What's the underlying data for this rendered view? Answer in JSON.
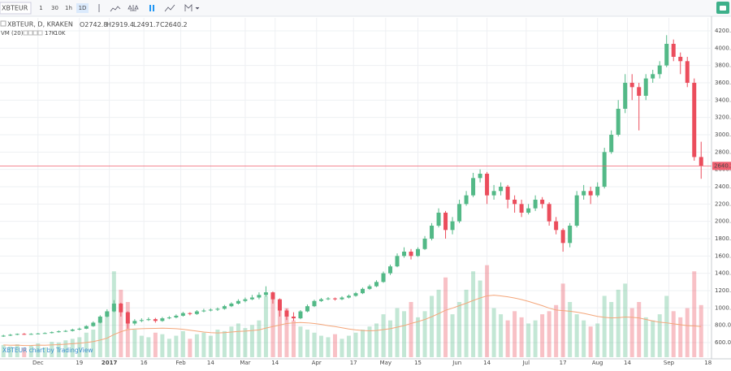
{
  "toolbar": {
    "symbol": "XBTEUR",
    "intervals": [
      "1",
      "30",
      "1h",
      "1D"
    ],
    "active": 3
  },
  "chart_data": {
    "type": "candlestick",
    "symbol_label": "XBTEUR, D, KRAKEN",
    "ohlc_labels": [
      "O",
      "H",
      "L",
      "C"
    ],
    "watermark": "XBTEUR chart by TradingView",
    "up_color": "#53b987",
    "down_color": "#eb4d5c",
    "last_price_color": "#f06070",
    "grid": true,
    "candles": {
      "open": [
        670,
        680,
        690,
        700,
        695,
        700,
        705,
        710,
        720,
        730,
        735,
        750,
        760,
        790,
        830,
        900,
        960,
        1050,
        950,
        820,
        850,
        860,
        870,
        850,
        880,
        890,
        910,
        940,
        930,
        960,
        970,
        980,
        990,
        1020,
        1050,
        1080,
        1100,
        1120,
        1150,
        1180,
        1100,
        970,
        900,
        880,
        960,
        1020,
        1080,
        1100,
        1110,
        1100,
        1120,
        1140,
        1170,
        1220,
        1250,
        1300,
        1400,
        1480,
        1600,
        1650,
        1600,
        1680,
        1800,
        1950,
        2100,
        1900,
        2000,
        2200,
        2300,
        2500,
        2550,
        2300,
        2350,
        2400,
        2250,
        2200,
        2100,
        2150,
        2250,
        2200,
        2000,
        1900,
        1750,
        1950,
        2300,
        2350,
        2300,
        2400,
        2800,
        3000,
        3300,
        3600,
        3550,
        3450,
        3650,
        3700,
        3800,
        4050,
        3900,
        3850,
        3600,
        2742.8
      ],
      "high": [
        690,
        700,
        705,
        710,
        708,
        712,
        718,
        728,
        740,
        745,
        760,
        772,
        800,
        845,
        915,
        985,
        1090,
        1060,
        960,
        870,
        880,
        890,
        885,
        895,
        905,
        925,
        955,
        950,
        975,
        990,
        995,
        1005,
        1035,
        1065,
        1100,
        1120,
        1150,
        1180,
        1250,
        1190,
        1110,
        990,
        950,
        975,
        1040,
        1095,
        1115,
        1125,
        1120,
        1135,
        1155,
        1185,
        1235,
        1270,
        1320,
        1420,
        1500,
        1630,
        1700,
        1680,
        1700,
        1830,
        1980,
        2150,
        2120,
        2050,
        2250,
        2350,
        2560,
        2600,
        2570,
        2420,
        2450,
        2420,
        2300,
        2250,
        2200,
        2300,
        2280,
        2220,
        2050,
        1920,
        1980,
        2350,
        2420,
        2400,
        2450,
        2850,
        3050,
        3400,
        3700,
        3700,
        3600,
        3700,
        3750,
        3850,
        4150,
        4100,
        3950,
        3900,
        3650,
        2919.4
      ],
      "low": [
        665,
        675,
        685,
        688,
        690,
        695,
        700,
        705,
        715,
        722,
        728,
        742,
        755,
        782,
        822,
        890,
        950,
        900,
        760,
        800,
        835,
        850,
        830,
        840,
        870,
        880,
        900,
        915,
        920,
        950,
        960,
        965,
        980,
        1010,
        1040,
        1065,
        1090,
        1100,
        1130,
        1050,
        900,
        860,
        850,
        870,
        950,
        1010,
        1070,
        1090,
        1085,
        1090,
        1110,
        1130,
        1160,
        1210,
        1240,
        1290,
        1380,
        1470,
        1580,
        1560,
        1590,
        1670,
        1780,
        1930,
        1800,
        1850,
        1980,
        2180,
        2280,
        2450,
        2200,
        2250,
        2300,
        2150,
        2100,
        2050,
        2080,
        2120,
        2150,
        1950,
        1850,
        1650,
        1700,
        1930,
        2250,
        2200,
        2280,
        2380,
        2780,
        2980,
        3250,
        3400,
        3050,
        3400,
        3600,
        3650,
        3780,
        3850,
        3700,
        3550,
        2700,
        2491.7
      ],
      "close": [
        680,
        690,
        700,
        695,
        700,
        705,
        710,
        720,
        730,
        735,
        750,
        760,
        790,
        830,
        900,
        960,
        1050,
        950,
        820,
        850,
        860,
        870,
        850,
        880,
        890,
        910,
        940,
        930,
        960,
        970,
        980,
        990,
        1020,
        1050,
        1080,
        1100,
        1120,
        1150,
        1180,
        1100,
        970,
        900,
        880,
        960,
        1020,
        1080,
        1100,
        1110,
        1100,
        1120,
        1140,
        1170,
        1220,
        1250,
        1300,
        1400,
        1480,
        1600,
        1650,
        1600,
        1680,
        1800,
        1950,
        2100,
        1900,
        2000,
        2200,
        2300,
        2500,
        2550,
        2300,
        2350,
        2400,
        2250,
        2200,
        2100,
        2150,
        2250,
        2200,
        2000,
        1900,
        1750,
        1950,
        2300,
        2350,
        2300,
        2400,
        2800,
        3000,
        3300,
        3600,
        3550,
        3450,
        3650,
        3700,
        3800,
        4050,
        3900,
        3850,
        3600,
        2742.8,
        2640.2
      ]
    },
    "volume": {
      "name": "VM (20)",
      "values": [
        4000,
        3500,
        4200,
        3000,
        3800,
        4500,
        3200,
        5000,
        4800,
        5500,
        6000,
        6500,
        8000,
        9000,
        12000,
        15000,
        28000,
        22000,
        18000,
        9000,
        7000,
        6500,
        8000,
        7500,
        6000,
        7000,
        8500,
        6000,
        7500,
        8000,
        7000,
        9000,
        8500,
        10000,
        11000,
        9500,
        10500,
        12000,
        20000,
        19000,
        18000,
        16000,
        12000,
        10000,
        9000,
        8000,
        7000,
        6500,
        7500,
        6000,
        7000,
        8000,
        9000,
        10000,
        11000,
        14000,
        12000,
        16000,
        15000,
        18000,
        13000,
        15000,
        20000,
        22000,
        26000,
        14000,
        18000,
        22000,
        28000,
        25000,
        30000,
        16000,
        14000,
        12000,
        15000,
        13000,
        11000,
        12000,
        14000,
        15000,
        17000,
        24000,
        18000,
        14000,
        12000,
        10000,
        11000,
        20000,
        18000,
        22000,
        24000,
        16000,
        18000,
        13000,
        12000,
        14000,
        20000,
        15000,
        13000,
        16000,
        28000,
        17000
      ],
      "value_label": "17K",
      "ma": [
        4000,
        3900,
        3950,
        3800,
        3850,
        3950,
        3900,
        4000,
        4100,
        4250,
        4400,
        4550,
        4800,
        5100,
        5600,
        6200,
        7400,
        8300,
        9000,
        9200,
        9300,
        9350,
        9400,
        9450,
        9400,
        9300,
        9100,
        8800,
        8500,
        8200,
        8000,
        7900,
        8000,
        8200,
        8400,
        8500,
        8700,
        8900,
        9500,
        10000,
        10500,
        11000,
        11200,
        11300,
        11200,
        11000,
        10700,
        10300,
        10000,
        9600,
        9200,
        8900,
        8700,
        8600,
        8700,
        9000,
        9300,
        9800,
        10300,
        11000,
        11600,
        12300,
        13200,
        14200,
        15300,
        16000,
        16800,
        17600,
        18500,
        19300,
        20000,
        20200,
        20000,
        19700,
        19300,
        18800,
        18200,
        17500,
        16800,
        16000,
        15400,
        15200,
        15000,
        14700,
        14300,
        13800,
        13300,
        13000,
        12800,
        12900,
        13100,
        13000,
        12800,
        12300,
        11800,
        11400,
        11200,
        10900,
        10600,
        10300,
        10200,
        10000
      ],
      "ma_label": "10K",
      "ma_color": "#f4a67a",
      "vlim": [
        0,
        45000
      ]
    },
    "xlim": [
      -0.5,
      102.5
    ],
    "xticks": [
      {
        "value": 5,
        "label": "Dec"
      },
      {
        "value": 11,
        "label": "19"
      },
      {
        "value": 15.33,
        "label": "2017"
      },
      {
        "value": 20.33,
        "label": "16"
      },
      {
        "value": 25.67,
        "label": "Feb"
      },
      {
        "value": 30,
        "label": "14"
      },
      {
        "value": 35,
        "label": "Mar"
      },
      {
        "value": 39.33,
        "label": "14"
      },
      {
        "value": 45.33,
        "label": "Apr"
      },
      {
        "value": 50.67,
        "label": "17"
      },
      {
        "value": 55.33,
        "label": "May"
      },
      {
        "value": 60,
        "label": "15"
      },
      {
        "value": 65.67,
        "label": "Jun"
      },
      {
        "value": 70,
        "label": "14"
      },
      {
        "value": 75.67,
        "label": "Jul"
      },
      {
        "value": 81,
        "label": "17"
      },
      {
        "value": 86,
        "label": "Aug"
      },
      {
        "value": 90.33,
        "label": "14"
      },
      {
        "value": 96.33,
        "label": "Sep"
      },
      {
        "value": 102,
        "label": "18"
      }
    ],
    "ylim": [
      431,
      4350
    ],
    "yticks": [
      {
        "value": 600,
        "label": "600.0"
      },
      {
        "value": 800,
        "label": "800.0"
      },
      {
        "value": 1000,
        "label": "1000.0"
      },
      {
        "value": 1200,
        "label": "1200.0"
      },
      {
        "value": 1400,
        "label": "1400.0"
      },
      {
        "value": 1600,
        "label": "1600.0"
      },
      {
        "value": 1800,
        "label": "1800.0"
      },
      {
        "value": 2000,
        "label": "2000.0"
      },
      {
        "value": 2200,
        "label": "2200.0"
      },
      {
        "value": 2400,
        "label": "2400.0"
      },
      {
        "value": 2600,
        "label": "2600.0"
      },
      {
        "value": 2800,
        "label": "2800.0"
      },
      {
        "value": 3000,
        "label": "3000.0"
      },
      {
        "value": 3200,
        "label": "3200.0"
      },
      {
        "value": 3400,
        "label": "3400.0"
      },
      {
        "value": 3600,
        "label": "3600.0"
      },
      {
        "value": 3800,
        "label": "3800.0"
      },
      {
        "value": 4000,
        "label": "4000.0"
      },
      {
        "value": 4200,
        "label": "4200.0"
      }
    ]
  }
}
